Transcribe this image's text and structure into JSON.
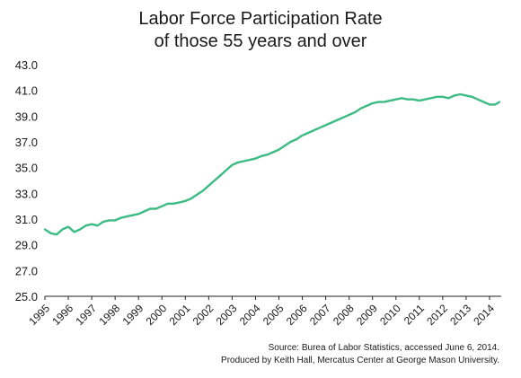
{
  "chart_data": {
    "type": "line",
    "title_line1": "Labor Force Participation Rate",
    "title_line2": "of those 55 years and over",
    "xlabel": "",
    "ylabel": "",
    "ylim": [
      25.0,
      43.0
    ],
    "yticks": [
      "25.0",
      "27.0",
      "29.0",
      "31.0",
      "33.0",
      "35.0",
      "37.0",
      "39.0",
      "41.0",
      "43.0"
    ],
    "xticks": [
      "1995",
      "1996",
      "1997",
      "1998",
      "1999",
      "2000",
      "2001",
      "2002",
      "2003",
      "2004",
      "2005",
      "2006",
      "2007",
      "2008",
      "2009",
      "2010",
      "2011",
      "2012",
      "2013",
      "2014"
    ],
    "xlim": [
      1995.0,
      2014.5
    ],
    "line_color": "#3dbb84",
    "grid": false,
    "series": [
      {
        "x": [
          1995.0,
          1995.25,
          1995.5,
          1995.75,
          1996.0,
          1996.25,
          1996.5,
          1996.75,
          1997.0,
          1997.25,
          1997.5,
          1997.75,
          1998.0,
          1998.25,
          1998.5,
          1998.75,
          1999.0,
          1999.25,
          1999.5,
          1999.75,
          2000.0,
          2000.25,
          2000.5,
          2000.75,
          2001.0,
          2001.25,
          2001.5,
          2001.75,
          2002.0,
          2002.25,
          2002.5,
          2002.75,
          2003.0,
          2003.25,
          2003.5,
          2003.75,
          2004.0,
          2004.25,
          2004.5,
          2004.75,
          2005.0,
          2005.25,
          2005.5,
          2005.75,
          2006.0,
          2006.25,
          2006.5,
          2006.75,
          2007.0,
          2007.25,
          2007.5,
          2007.75,
          2008.0,
          2008.25,
          2008.5,
          2008.75,
          2009.0,
          2009.25,
          2009.5,
          2009.75,
          2010.0,
          2010.25,
          2010.5,
          2010.75,
          2011.0,
          2011.25,
          2011.5,
          2011.75,
          2012.0,
          2012.25,
          2012.5,
          2012.75,
          2013.0,
          2013.25,
          2013.5,
          2013.75,
          2014.0,
          2014.25,
          2014.42
        ],
        "values": [
          30.2,
          29.9,
          29.8,
          30.2,
          30.4,
          30.0,
          30.2,
          30.5,
          30.6,
          30.5,
          30.8,
          30.9,
          30.9,
          31.1,
          31.2,
          31.3,
          31.4,
          31.6,
          31.8,
          31.8,
          32.0,
          32.2,
          32.2,
          32.3,
          32.4,
          32.6,
          32.9,
          33.2,
          33.6,
          34.0,
          34.4,
          34.8,
          35.2,
          35.4,
          35.5,
          35.6,
          35.7,
          35.9,
          36.0,
          36.2,
          36.4,
          36.7,
          37.0,
          37.2,
          37.5,
          37.7,
          37.9,
          38.1,
          38.3,
          38.5,
          38.7,
          38.9,
          39.1,
          39.3,
          39.6,
          39.8,
          40.0,
          40.1,
          40.1,
          40.2,
          40.3,
          40.4,
          40.3,
          40.3,
          40.2,
          40.3,
          40.4,
          40.5,
          40.5,
          40.4,
          40.6,
          40.7,
          40.6,
          40.5,
          40.3,
          40.1,
          39.9,
          39.9,
          40.1
        ]
      }
    ]
  },
  "source": {
    "line1": "Source: Burea of Labor Statistics, accessed June 6, 2014.",
    "line2": "Produced by Keith Hall, Mercatus Center at George Mason University."
  }
}
